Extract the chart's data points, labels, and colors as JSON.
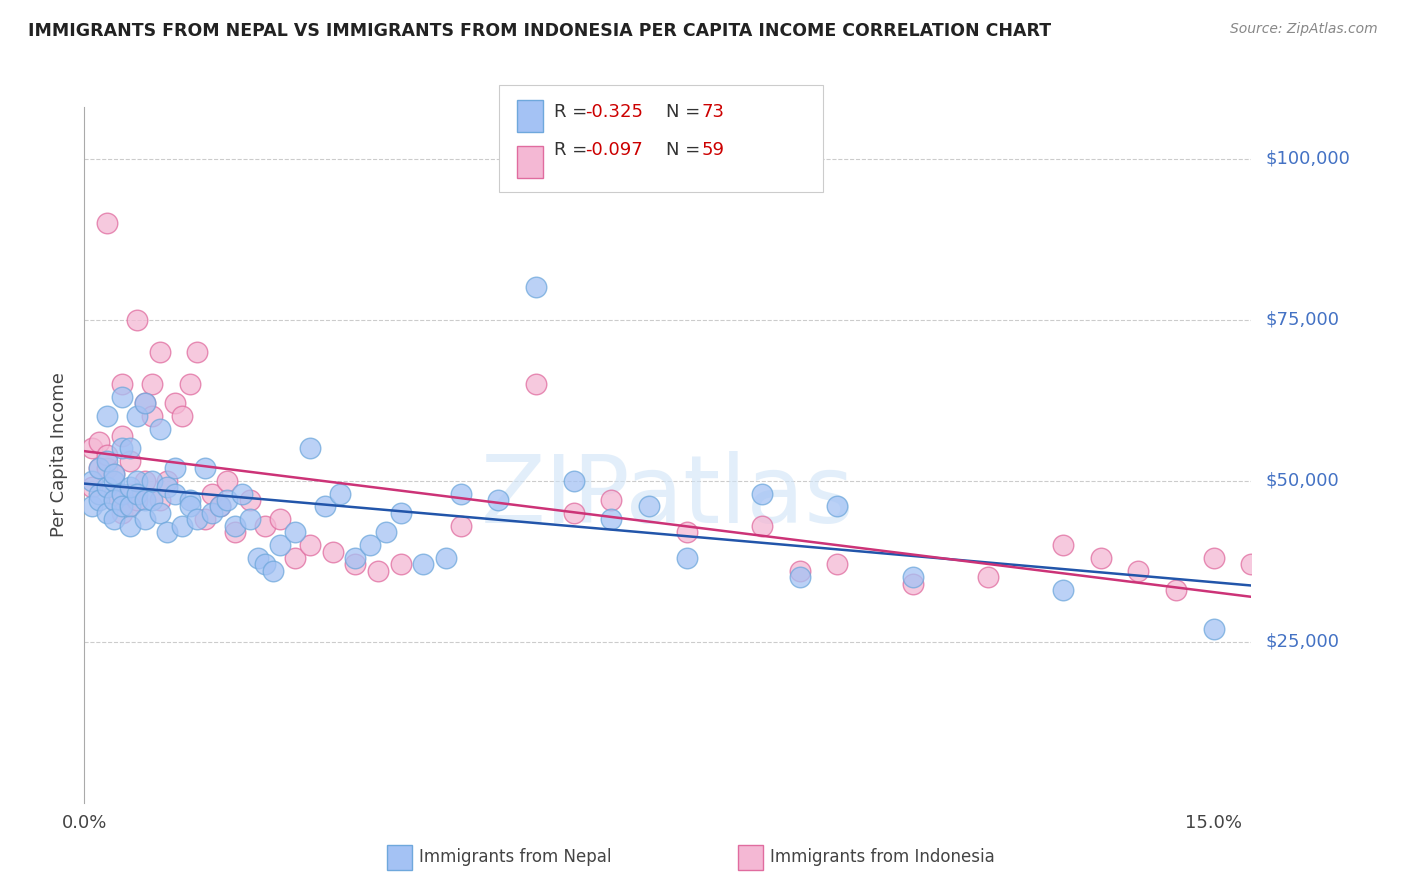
{
  "title": "IMMIGRANTS FROM NEPAL VS IMMIGRANTS FROM INDONESIA PER CAPITA INCOME CORRELATION CHART",
  "source": "Source: ZipAtlas.com",
  "ylabel": "Per Capita Income",
  "ytick_labels": [
    "$25,000",
    "$50,000",
    "$75,000",
    "$100,000"
  ],
  "ytick_vals": [
    25000,
    50000,
    75000,
    100000
  ],
  "ylim": [
    0,
    108000
  ],
  "xlim": [
    0.0,
    0.155
  ],
  "xtick_vals": [
    0.0,
    0.15
  ],
  "xtick_labels": [
    "0.0%",
    "15.0%"
  ],
  "nepal_color_edge": "#6fa8dc",
  "nepal_color_fill": "#a4c2f4",
  "indonesia_color_edge": "#e06c9f",
  "indonesia_color_fill": "#f4b8d4",
  "nepal_line_color": "#2255aa",
  "indonesia_line_color": "#cc3377",
  "nepal_R": "-0.325",
  "nepal_N": "73",
  "indonesia_R": "-0.097",
  "indonesia_N": "59",
  "watermark": "ZIPatlas",
  "nepal_scatter_x": [
    0.001,
    0.001,
    0.002,
    0.002,
    0.002,
    0.003,
    0.003,
    0.003,
    0.003,
    0.004,
    0.004,
    0.004,
    0.004,
    0.005,
    0.005,
    0.005,
    0.005,
    0.006,
    0.006,
    0.006,
    0.006,
    0.007,
    0.007,
    0.007,
    0.008,
    0.008,
    0.008,
    0.009,
    0.009,
    0.01,
    0.01,
    0.011,
    0.011,
    0.012,
    0.012,
    0.013,
    0.014,
    0.014,
    0.015,
    0.016,
    0.017,
    0.018,
    0.019,
    0.02,
    0.021,
    0.022,
    0.023,
    0.024,
    0.025,
    0.026,
    0.028,
    0.03,
    0.032,
    0.034,
    0.036,
    0.038,
    0.04,
    0.042,
    0.045,
    0.048,
    0.05,
    0.055,
    0.06,
    0.065,
    0.07,
    0.075,
    0.08,
    0.09,
    0.095,
    0.1,
    0.11,
    0.13,
    0.15
  ],
  "nepal_scatter_y": [
    46000,
    50000,
    48000,
    52000,
    47000,
    45000,
    49000,
    53000,
    60000,
    50000,
    47000,
    44000,
    51000,
    63000,
    48000,
    46000,
    55000,
    46000,
    43000,
    49000,
    55000,
    50000,
    48000,
    60000,
    62000,
    47000,
    44000,
    47000,
    50000,
    45000,
    58000,
    49000,
    42000,
    48000,
    52000,
    43000,
    47000,
    46000,
    44000,
    52000,
    45000,
    46000,
    47000,
    43000,
    48000,
    44000,
    38000,
    37000,
    36000,
    40000,
    42000,
    55000,
    46000,
    48000,
    38000,
    40000,
    42000,
    45000,
    37000,
    38000,
    48000,
    47000,
    80000,
    50000,
    44000,
    46000,
    38000,
    48000,
    35000,
    46000,
    35000,
    33000,
    27000
  ],
  "indonesia_scatter_x": [
    0.001,
    0.001,
    0.002,
    0.002,
    0.003,
    0.003,
    0.003,
    0.004,
    0.004,
    0.004,
    0.005,
    0.005,
    0.005,
    0.006,
    0.006,
    0.006,
    0.007,
    0.007,
    0.008,
    0.008,
    0.009,
    0.009,
    0.01,
    0.01,
    0.011,
    0.012,
    0.013,
    0.014,
    0.015,
    0.016,
    0.017,
    0.018,
    0.019,
    0.02,
    0.022,
    0.024,
    0.026,
    0.028,
    0.03,
    0.033,
    0.036,
    0.039,
    0.042,
    0.05,
    0.06,
    0.065,
    0.07,
    0.08,
    0.09,
    0.095,
    0.1,
    0.11,
    0.12,
    0.13,
    0.135,
    0.14,
    0.145,
    0.15,
    0.155
  ],
  "indonesia_scatter_y": [
    55000,
    49000,
    56000,
    52000,
    52000,
    54000,
    90000,
    51000,
    48000,
    47000,
    57000,
    45000,
    65000,
    53000,
    46000,
    48000,
    47000,
    75000,
    50000,
    62000,
    60000,
    65000,
    47000,
    70000,
    50000,
    62000,
    60000,
    65000,
    70000,
    44000,
    48000,
    46000,
    50000,
    42000,
    47000,
    43000,
    44000,
    38000,
    40000,
    39000,
    37000,
    36000,
    37000,
    43000,
    65000,
    45000,
    47000,
    42000,
    43000,
    36000,
    37000,
    34000,
    35000,
    40000,
    38000,
    36000,
    33000,
    38000,
    37000
  ]
}
